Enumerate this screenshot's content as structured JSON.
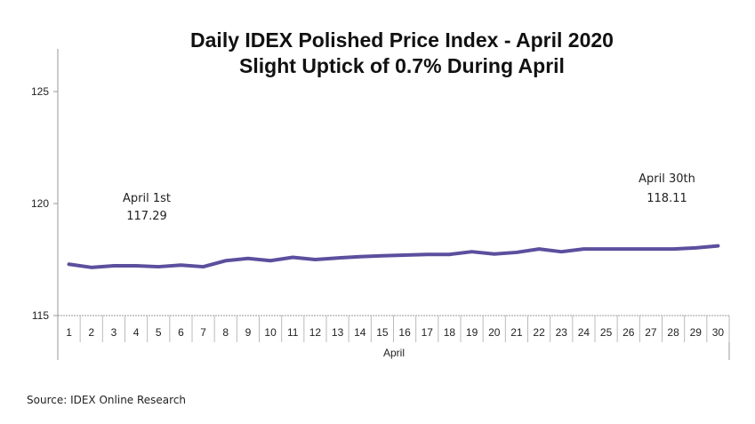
{
  "chart_data": {
    "type": "line",
    "title": "Daily IDEX Polished Price Index - April 2020",
    "subtitle": "Slight Uptick of 0.7% During April",
    "xlabel": "April",
    "ylabel": "",
    "ylim": [
      115,
      125
    ],
    "yticks": [
      115,
      120,
      125
    ],
    "categories": [
      "1",
      "2",
      "3",
      "4",
      "5",
      "6",
      "7",
      "8",
      "9",
      "10",
      "11",
      "12",
      "13",
      "14",
      "15",
      "16",
      "17",
      "18",
      "19",
      "20",
      "21",
      "22",
      "23",
      "24",
      "25",
      "26",
      "27",
      "28",
      "29",
      "30"
    ],
    "series": [
      {
        "values": [
          117.29,
          117.15,
          117.22,
          117.22,
          117.18,
          117.25,
          117.18,
          117.45,
          117.55,
          117.45,
          117.6,
          117.5,
          117.57,
          117.63,
          117.67,
          117.7,
          117.73,
          117.73,
          117.85,
          117.75,
          117.82,
          117.97,
          117.85,
          117.97,
          117.97,
          117.97,
          117.97,
          117.97,
          118.02,
          118.11
        ],
        "color": "#5b4f9e"
      }
    ],
    "annotations": [
      {
        "label": "April 1st",
        "value": "117.29"
      },
      {
        "label": "April 30th",
        "value": "118.11"
      }
    ],
    "grid": false,
    "legend": "none"
  },
  "source": "Source: IDEX Online Research"
}
